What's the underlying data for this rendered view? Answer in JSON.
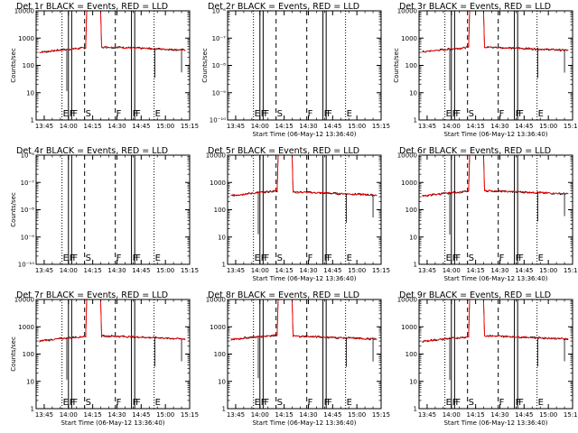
{
  "panels": [
    {
      "title": "Det 1r BLACK = Events, RED = LLD",
      "scale": "log",
      "ylim": [
        1,
        10000
      ],
      "ytick_labels": [
        "1",
        "10",
        "100",
        "1000",
        "10000"
      ],
      "has_data": true,
      "show_ylabel": true,
      "show_xlabel": false,
      "baseline_lo": 300,
      "baseline_hi": 480
    },
    {
      "title": "Det 2r BLACK = Events, RED = LLD",
      "scale": "tiny",
      "ylim": [
        1e-10,
        1e-06
      ],
      "ytick_labels": [
        "10⁻¹⁰",
        "10⁻⁹",
        "10⁻⁸",
        "10⁻⁷",
        "10⁻⁶"
      ],
      "has_data": false,
      "show_ylabel": true,
      "show_xlabel": true
    },
    {
      "title": "Det 3r BLACK = Events, RED = LLD",
      "scale": "log",
      "ylim": [
        1,
        10000
      ],
      "ytick_labels": [
        "1",
        "10",
        "100",
        "1000",
        "10000"
      ],
      "has_data": true,
      "show_ylabel": true,
      "show_xlabel": true,
      "baseline_lo": 310,
      "baseline_hi": 470
    },
    {
      "title": "Det 4r BLACK = Events, RED = LLD",
      "scale": "tiny",
      "ylim": [
        1e-10,
        1e-06
      ],
      "ytick_labels": [
        "10⁻¹⁰",
        "10⁻⁹",
        "10⁻⁸",
        "10⁻⁷",
        "10⁻⁶"
      ],
      "has_data": false,
      "show_ylabel": true,
      "show_xlabel": false
    },
    {
      "title": "Det 5r BLACK = Events, RED = LLD",
      "scale": "log",
      "ylim": [
        1,
        10000
      ],
      "ytick_labels": [
        "1",
        "10",
        "100",
        "1000",
        "10000"
      ],
      "has_data": true,
      "show_ylabel": false,
      "show_xlabel": true,
      "baseline_lo": 330,
      "baseline_hi": 450
    },
    {
      "title": "Det 6r BLACK = Events, RED = LLD",
      "scale": "log",
      "ylim": [
        1,
        10000
      ],
      "ytick_labels": [
        "1",
        "10",
        "100",
        "1000",
        "10000"
      ],
      "has_data": true,
      "show_ylabel": false,
      "show_xlabel": true,
      "baseline_lo": 320,
      "baseline_hi": 500
    },
    {
      "title": "Det 7r BLACK = Events, RED = LLD",
      "scale": "log",
      "ylim": [
        1,
        10000
      ],
      "ytick_labels": [
        "1",
        "10",
        "100",
        "1000",
        "10000"
      ],
      "has_data": true,
      "show_ylabel": true,
      "show_xlabel": true,
      "baseline_lo": 300,
      "baseline_hi": 470
    },
    {
      "title": "Det 8r BLACK = Events, RED = LLD",
      "scale": "log",
      "ylim": [
        1,
        10000
      ],
      "ytick_labels": [
        "1",
        "10",
        "100",
        "1000",
        "10000"
      ],
      "has_data": true,
      "show_ylabel": false,
      "show_xlabel": true,
      "baseline_lo": 340,
      "baseline_hi": 460
    },
    {
      "title": "Det 9r BLACK = Events, RED = LLD",
      "scale": "log",
      "ylim": [
        1,
        10000
      ],
      "ytick_labels": [
        "1",
        "10",
        "100",
        "1000",
        "10000"
      ],
      "has_data": true,
      "show_ylabel": false,
      "show_xlabel": true,
      "baseline_lo": 290,
      "baseline_hi": 470
    }
  ],
  "chart_data": {
    "type": "line",
    "xlabel": "Start Time (06-May-12 13:36:40)",
    "ylabel": "Counts/sec",
    "x_tick_labels": [
      "13:45",
      "14:00",
      "14:15",
      "14:30",
      "14:45",
      "15:00",
      "15:15"
    ],
    "x_tick_minutes": [
      45,
      60,
      75,
      90,
      105,
      120,
      135
    ],
    "xlim_minutes": [
      40,
      135
    ],
    "series": [
      {
        "name": "BLACK = Events",
        "color": "#000000"
      },
      {
        "name": "RED = LLD",
        "color": "#ff0000"
      }
    ],
    "event_markers": [
      {
        "label": "E",
        "minute": 56,
        "style": "dotted"
      },
      {
        "label": "F",
        "minute": 60,
        "style": "solid"
      },
      {
        "label": "F",
        "minute": 62,
        "style": "solid"
      },
      {
        "label": "S",
        "minute": 70,
        "style": "dashed"
      },
      {
        "label": "F",
        "minute": 89,
        "style": "dashed"
      },
      {
        "label": "F",
        "minute": 99,
        "style": "solid"
      },
      {
        "label": "F",
        "minute": 101,
        "style": "solid"
      },
      {
        "label": "E",
        "minute": 113,
        "style": "dotted"
      }
    ],
    "flare_window_minutes": [
      71,
      80
    ],
    "panel_time_range_minutes": [
      40,
      135
    ]
  }
}
